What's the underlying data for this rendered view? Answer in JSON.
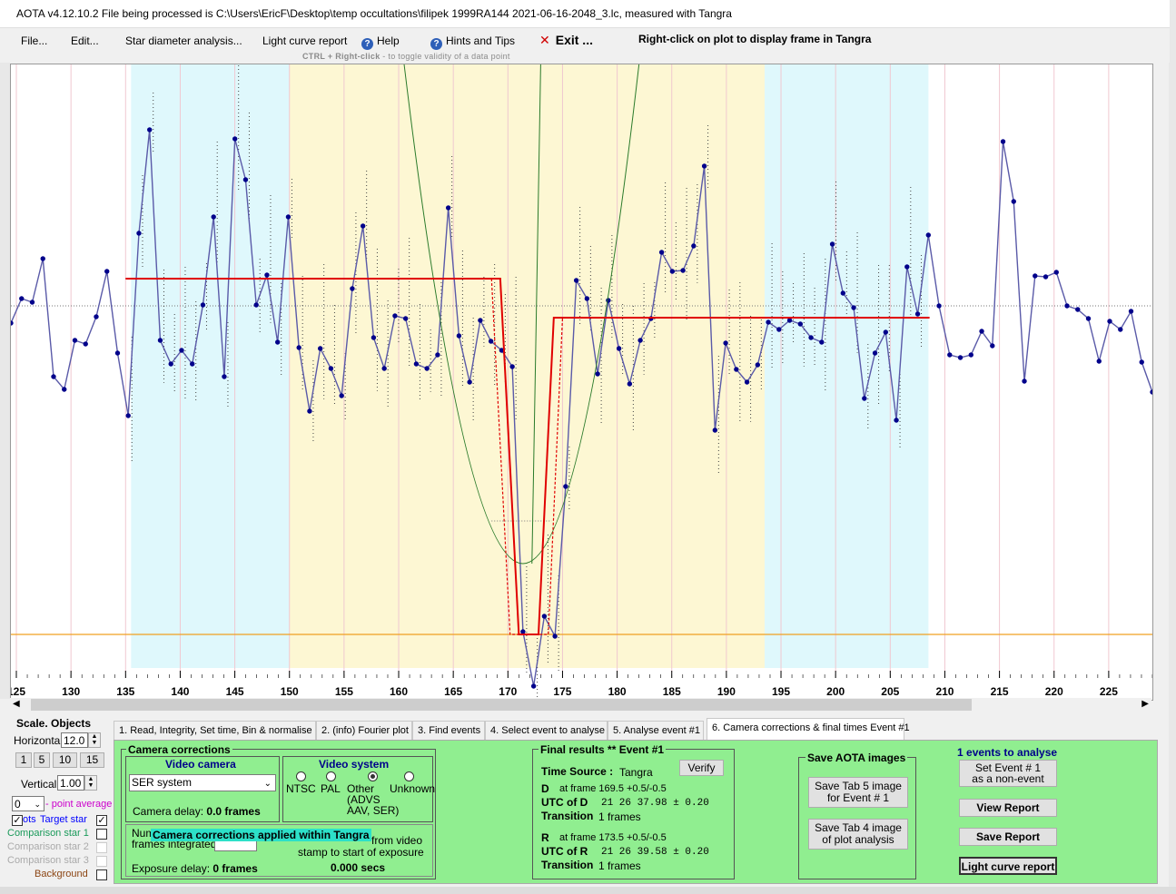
{
  "window": {
    "title": "AOTA v4.12.10.2    File being processed is C:\\Users\\EricF\\Desktop\\temp occultations\\filipek 1999RA144 2021-06-16-2048_3.lc, measured with Tangra"
  },
  "menu": {
    "file": "File...",
    "edit": "Edit...",
    "star_diameter": "Star diameter analysis...",
    "light_curve_report": "Light curve report",
    "help": "Help",
    "hints": "Hints and Tips",
    "exit": "Exit ..."
  },
  "hints": {
    "right_click": "Right-click on plot to display frame in Tangra",
    "ctrl_bold": "CTRL + Right-click",
    "ctrl_rest": "  -  to toggle validity of a data point"
  },
  "plot": {
    "x_tick_labels": [
      "125",
      "130",
      "135",
      "140",
      "145",
      "150",
      "155",
      "160",
      "165",
      "170",
      "175",
      "180",
      "185",
      "190",
      "195",
      "200",
      "205",
      "210",
      "215",
      "220",
      "225"
    ],
    "x_range": [
      124.5,
      229
    ],
    "colors": {
      "series": "#5a5aa8",
      "fit": "#e00000",
      "cyan_band": "#dff8fc",
      "yellow_band": "#fdf7d3",
      "bottom_line": "#f0a020",
      "model_curve": "#2a7a2a"
    }
  },
  "scale": {
    "title": "Scale.  Objects",
    "horizontal_label": "Horizontal",
    "horizontal_value": "12.0",
    "vertical_label": "Vertical",
    "vertical_value": "1.00",
    "buttons": [
      "1",
      "5",
      "10",
      "15"
    ],
    "point_avg_value": "0",
    "point_avg_label": "- point average"
  },
  "objects": {
    "target_prefix": "ots",
    "target": "Target star",
    "comp1": "Comparison star 1",
    "comp2": "Comparison star 2",
    "comp3": "Comparison star 3",
    "background": "Background"
  },
  "tabs": [
    "1. Read, Integrity, Set time, Bin & normalise",
    "2. (info)  Fourier plot",
    "3. Find events",
    "4. Select event to analyse",
    "5. Analyse event #1",
    "6. Camera corrections & final times Event #1"
  ],
  "camera": {
    "group_title": "Camera corrections",
    "video_camera_title": "Video camera",
    "camera_select": "SER system",
    "camera_delay_label": "Camera delay:",
    "camera_delay_value": "0.0 frames",
    "video_system_title": "Video system",
    "ntsc": "NTSC",
    "pal": "PAL",
    "other": "Other",
    "other_detail": "(ADVS\nAAV, SER)",
    "unknown": "Unknown",
    "num_frames_label": "Num",
    "frames_integrated": "frames integrated",
    "overlay_text": "Camera corrections applied within Tangra",
    "from_video": "from video",
    "stamp_text": "stamp to start of exposure",
    "exposure_delay_label": "Exposure delay:",
    "exposure_delay_value": "0 frames",
    "offset_secs": "0.000 secs"
  },
  "results": {
    "title": "Final results  **   Event  #1",
    "verify": "Verify",
    "time_source_label": "Time Source :",
    "time_source_value": "Tangra",
    "d_label": "D",
    "d_frame": "at frame 169.5  +0.5/-0.5",
    "utc_d_label": "UTC of D",
    "utc_d_value": "21 26 37.98  ± 0.20",
    "transition_label": "Transition",
    "d_transition": "1 frames",
    "r_label": "R",
    "r_frame": "at frame 173.5  +0.5/-0.5",
    "utc_r_label": "UTC of R",
    "utc_r_value": "21 26 39.58  ± 0.20",
    "r_transition": "1 frames"
  },
  "save_images": {
    "title": "Save AOTA images",
    "tab5": "Save Tab 5 image\nfor Event # 1",
    "tab4": "Save Tab 4 image\nof plot analysis"
  },
  "right_panel": {
    "events_count": "1",
    "events_label": " events to analyse",
    "non_event": "Set Event # 1\nas a non-event",
    "view_report": "View Report",
    "save_report": "Save Report",
    "light_curve_report": "Light curve report"
  }
}
